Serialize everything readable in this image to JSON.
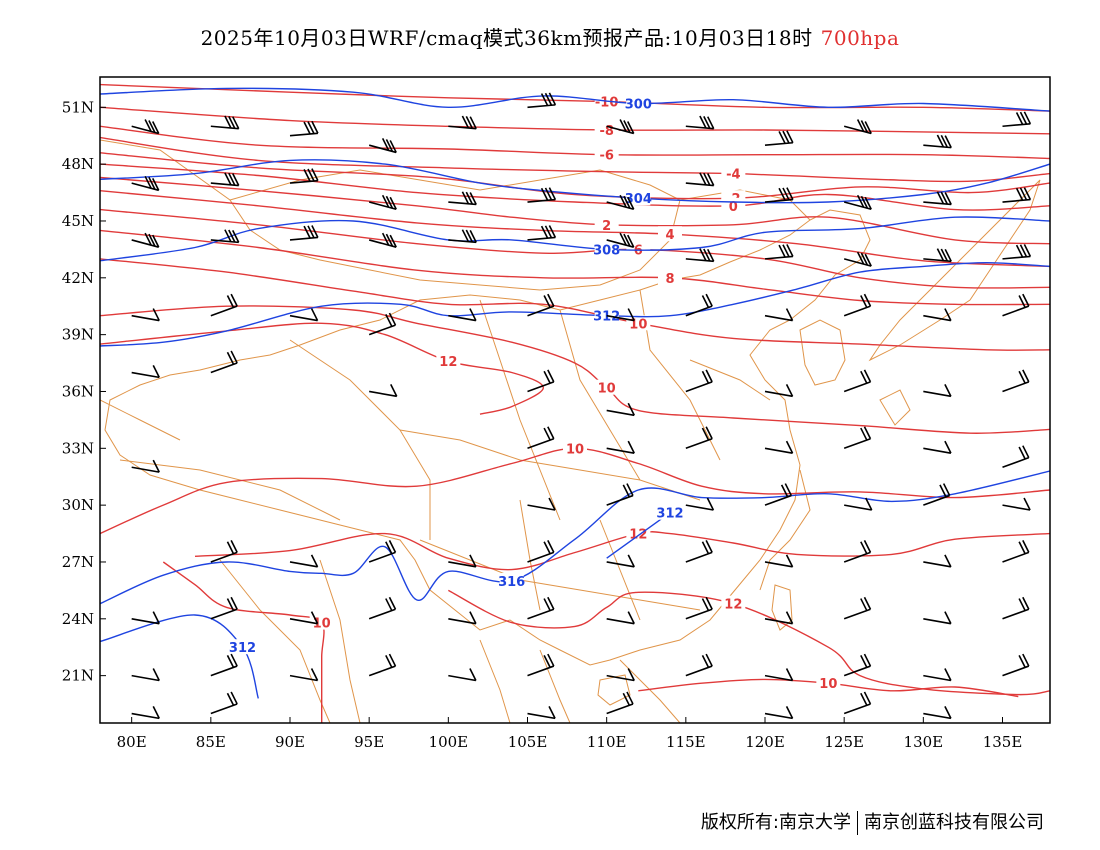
{
  "header": {
    "title": "2025年10月03日WRF/cmaq模式36km预报产品:10月03日18时",
    "level": "700hpa",
    "level_color": "#e03030"
  },
  "footer": {
    "copyright": "版权所有:南京大学",
    "company": "南京创蓝科技有限公司"
  },
  "axes": {
    "lat_labels": [
      "51N",
      "48N",
      "45N",
      "42N",
      "39N",
      "36N",
      "33N",
      "30N",
      "27N",
      "24N",
      "21N"
    ],
    "lat_values": [
      51,
      48,
      45,
      42,
      39,
      36,
      33,
      30,
      27,
      24,
      21
    ],
    "lon_labels": [
      "80E",
      "85E",
      "90E",
      "95E",
      "100E",
      "105E",
      "110E",
      "115E",
      "120E",
      "125E",
      "130E",
      "135E"
    ],
    "lon_values": [
      80,
      85,
      90,
      95,
      100,
      105,
      110,
      115,
      120,
      125,
      130,
      135
    ],
    "lon_range": [
      78,
      138
    ],
    "lat_range": [
      18.5,
      52.6
    ]
  },
  "colors": {
    "temperature": "#e03a3a",
    "height": "#1f44e0",
    "boundary": "#e0954a",
    "barb": "#000000"
  },
  "temperature_contours": [
    {
      "label": "-10",
      "pts": [
        [
          78,
          52.2
        ],
        [
          90,
          51.8
        ],
        [
          100,
          51.5
        ],
        [
          110,
          51.3
        ],
        [
          120,
          51.0
        ],
        [
          130,
          51.0
        ],
        [
          138,
          50.8
        ]
      ]
    },
    {
      "label": "-8",
      "pts": [
        [
          78,
          51.0
        ],
        [
          90,
          50.3
        ],
        [
          100,
          50.0
        ],
        [
          110,
          49.8
        ],
        [
          120,
          49.8
        ],
        [
          130,
          49.7
        ],
        [
          138,
          49.6
        ]
      ]
    },
    {
      "label": "-6",
      "pts": [
        [
          78,
          50.0
        ],
        [
          88,
          49.0
        ],
        [
          100,
          48.8
        ],
        [
          110,
          48.5
        ],
        [
          120,
          48.5
        ],
        [
          130,
          48.5
        ],
        [
          138,
          48.3
        ]
      ]
    },
    {
      "label": "-4",
      "pts": [
        [
          78,
          49.4
        ],
        [
          88,
          48.2
        ],
        [
          100,
          47.8
        ],
        [
          110,
          47.6
        ],
        [
          118,
          47.5
        ],
        [
          127,
          47.2
        ],
        [
          133,
          47.1
        ],
        [
          138,
          47.5
        ]
      ]
    },
    {
      "label": "-2",
      "pts": [
        [
          78,
          48.6
        ],
        [
          88,
          47.8
        ],
        [
          99,
          47.3
        ],
        [
          108,
          46.4
        ],
        [
          118,
          46.2
        ],
        [
          126,
          46.8
        ],
        [
          133,
          46.5
        ],
        [
          138,
          47.0
        ]
      ]
    },
    {
      "label": "0",
      "pts": [
        [
          78,
          48.0
        ],
        [
          88,
          47.4
        ],
        [
          98,
          46.5
        ],
        [
          108,
          46.0
        ],
        [
          118,
          45.8
        ],
        [
          124,
          46.4
        ],
        [
          132,
          45.6
        ],
        [
          138,
          45.8
        ]
      ]
    },
    {
      "label": "2",
      "pts": [
        [
          78,
          47.3
        ],
        [
          88,
          46.6
        ],
        [
          98,
          45.8
        ],
        [
          104,
          45.2
        ],
        [
          110,
          44.8
        ],
        [
          118,
          44.8
        ],
        [
          124,
          45.2
        ],
        [
          132,
          44.0
        ],
        [
          138,
          43.8
        ]
      ]
    },
    {
      "label": "4",
      "pts": [
        [
          78,
          46.6
        ],
        [
          88,
          45.8
        ],
        [
          98,
          44.9
        ],
        [
          106,
          44.5
        ],
        [
          114,
          44.3
        ],
        [
          122,
          43.8
        ],
        [
          130,
          42.9
        ],
        [
          138,
          42.6
        ]
      ]
    },
    {
      "label": "6",
      "pts": [
        [
          78,
          45.6
        ],
        [
          88,
          44.8
        ],
        [
          98,
          43.8
        ],
        [
          106,
          43.3
        ],
        [
          112,
          43.5
        ],
        [
          120,
          43.0
        ],
        [
          126,
          42.0
        ],
        [
          132,
          41.5
        ],
        [
          138,
          41.5
        ]
      ]
    },
    {
      "label": "8",
      "pts": [
        [
          78,
          44.5
        ],
        [
          88,
          43.6
        ],
        [
          98,
          42.4
        ],
        [
          106,
          42.0
        ],
        [
          114,
          42.0
        ],
        [
          120,
          41.4
        ],
        [
          126,
          40.8
        ],
        [
          132,
          40.6
        ],
        [
          138,
          40.6
        ]
      ]
    },
    {
      "label": "10",
      "pts": [
        [
          78,
          43.0
        ],
        [
          86,
          42.3
        ],
        [
          94,
          41.3
        ],
        [
          100,
          40.6
        ],
        [
          106,
          40.6
        ],
        [
          112,
          39.6
        ],
        [
          118,
          38.8
        ],
        [
          126,
          38.5
        ],
        [
          134,
          38.2
        ],
        [
          138,
          38.2
        ]
      ]
    },
    {
      "label": "10",
      "pts": [
        [
          78,
          40.0
        ],
        [
          86,
          40.5
        ],
        [
          94,
          40.3
        ],
        [
          98,
          39.6
        ],
        [
          104,
          38.6
        ],
        [
          108,
          37.5
        ],
        [
          110,
          36.2
        ],
        [
          112,
          35.0
        ],
        [
          118,
          34.6
        ],
        [
          126,
          34.2
        ],
        [
          133,
          33.8
        ],
        [
          138,
          34.0
        ]
      ]
    },
    {
      "label": "12",
      "pts": [
        [
          78,
          38.5
        ],
        [
          86,
          39.2
        ],
        [
          92,
          39.6
        ],
        [
          96,
          39.0
        ],
        [
          100,
          37.6
        ],
        [
          104,
          37.0
        ],
        [
          106,
          36.2
        ],
        [
          104,
          35.2
        ],
        [
          102,
          34.8
        ]
      ]
    },
    {
      "label": "10",
      "pts": [
        [
          78,
          28.5
        ],
        [
          82,
          30.0
        ],
        [
          86,
          31.2
        ],
        [
          92,
          31.4
        ],
        [
          98,
          31.0
        ],
        [
          104,
          32.2
        ],
        [
          108,
          33.0
        ],
        [
          112,
          32.2
        ],
        [
          116,
          31.0
        ],
        [
          120,
          30.6
        ],
        [
          126,
          30.7
        ],
        [
          132,
          30.4
        ],
        [
          138,
          30.8
        ]
      ]
    },
    {
      "label": "12",
      "pts": [
        [
          84,
          27.3
        ],
        [
          90,
          27.6
        ],
        [
          96,
          28.5
        ],
        [
          100,
          27.2
        ],
        [
          104,
          26.6
        ],
        [
          108,
          27.5
        ],
        [
          112,
          28.5
        ],
        [
          114,
          28.5
        ],
        [
          118,
          28.0
        ],
        [
          122,
          27.4
        ],
        [
          128,
          27.4
        ],
        [
          132,
          28.2
        ],
        [
          138,
          28.5
        ]
      ]
    },
    {
      "label": "10",
      "pts": [
        [
          82,
          27.0
        ],
        [
          84,
          25.8
        ],
        [
          86,
          24.6
        ],
        [
          90,
          24.2
        ],
        [
          92,
          23.8
        ],
        [
          92,
          22.0
        ],
        [
          92,
          20.0
        ],
        [
          92,
          18.5
        ]
      ]
    },
    {
      "label": "12",
      "pts": [
        [
          100,
          25.5
        ],
        [
          104,
          23.8
        ],
        [
          108,
          23.6
        ],
        [
          110,
          24.6
        ],
        [
          112,
          25.4
        ],
        [
          118,
          24.8
        ],
        [
          124,
          22.5
        ],
        [
          126,
          21.0
        ],
        [
          130,
          20.3
        ],
        [
          136,
          20.0
        ],
        [
          138,
          20.2
        ]
      ]
    },
    {
      "label": "10",
      "pts": [
        [
          112,
          20.2
        ],
        [
          116,
          20.6
        ],
        [
          120,
          20.8
        ],
        [
          124,
          20.6
        ],
        [
          128,
          20.2
        ],
        [
          132,
          20.4
        ],
        [
          136,
          19.9
        ]
      ]
    }
  ],
  "height_contours": [
    {
      "label": "300",
      "pts": [
        [
          78,
          51.7
        ],
        [
          86,
          52.0
        ],
        [
          94,
          51.8
        ],
        [
          100,
          51.0
        ],
        [
          106,
          51.6
        ],
        [
          112,
          51.2
        ],
        [
          118,
          51.4
        ],
        [
          124,
          51.0
        ],
        [
          130,
          51.2
        ],
        [
          138,
          50.8
        ]
      ]
    },
    {
      "label": "304",
      "pts": [
        [
          78,
          47.2
        ],
        [
          84,
          47.5
        ],
        [
          90,
          48.2
        ],
        [
          96,
          48.0
        ],
        [
          102,
          47.0
        ],
        [
          106,
          46.6
        ],
        [
          112,
          46.2
        ],
        [
          118,
          46.0
        ],
        [
          124,
          46.0
        ],
        [
          130,
          46.4
        ],
        [
          134,
          47.0
        ],
        [
          138,
          48.0
        ]
      ]
    },
    {
      "label": "308",
      "pts": [
        [
          78,
          42.9
        ],
        [
          84,
          43.6
        ],
        [
          88,
          44.6
        ],
        [
          94,
          45.0
        ],
        [
          100,
          44.0
        ],
        [
          104,
          44.0
        ],
        [
          110,
          43.5
        ],
        [
          116,
          43.6
        ],
        [
          120,
          44.4
        ],
        [
          126,
          44.6
        ],
        [
          132,
          45.2
        ],
        [
          138,
          45.0
        ]
      ]
    },
    {
      "label": "312",
      "pts": [
        [
          78,
          38.4
        ],
        [
          82,
          38.6
        ],
        [
          86,
          39.2
        ],
        [
          92,
          40.5
        ],
        [
          97,
          40.6
        ],
        [
          100,
          40.0
        ],
        [
          104,
          40.2
        ],
        [
          110,
          40.0
        ],
        [
          114,
          40.0
        ],
        [
          118,
          40.6
        ],
        [
          122,
          41.4
        ],
        [
          126,
          42.3
        ],
        [
          130,
          42.6
        ],
        [
          134,
          42.8
        ],
        [
          138,
          42.6
        ]
      ]
    },
    {
      "label": "316",
      "pts": [
        [
          78,
          24.8
        ],
        [
          82,
          26.3
        ],
        [
          86,
          27.0
        ],
        [
          90,
          26.5
        ],
        [
          92,
          26.4
        ],
        [
          94,
          26.4
        ],
        [
          96,
          27.8
        ],
        [
          98,
          25.0
        ],
        [
          100,
          26.5
        ],
        [
          104,
          26.0
        ],
        [
          108,
          28.2
        ],
        [
          112,
          30.8
        ],
        [
          116,
          30.4
        ],
        [
          120,
          30.4
        ],
        [
          124,
          30.6
        ],
        [
          128,
          30.2
        ],
        [
          132,
          30.6
        ],
        [
          138,
          31.8
        ]
      ]
    },
    {
      "label": "312",
      "pts": [
        [
          78,
          22.8
        ],
        [
          84,
          24.2
        ],
        [
          87,
          22.5
        ],
        [
          88,
          19.8
        ]
      ]
    },
    {
      "label": "312",
      "pts": [
        [
          110,
          27.2
        ],
        [
          114,
          29.6
        ]
      ]
    }
  ],
  "wind_barbs": [
    [
      80,
      50
    ],
    [
      85,
      50
    ],
    [
      90,
      49.5
    ],
    [
      95,
      49
    ],
    [
      100,
      50
    ],
    [
      105,
      51
    ],
    [
      110,
      50
    ],
    [
      115,
      50
    ],
    [
      120,
      49
    ],
    [
      125,
      50
    ],
    [
      130,
      49
    ],
    [
      135,
      50
    ],
    [
      80,
      47
    ],
    [
      85,
      47
    ],
    [
      90,
      47
    ],
    [
      95,
      46
    ],
    [
      100,
      46
    ],
    [
      105,
      46
    ],
    [
      110,
      46
    ],
    [
      115,
      47
    ],
    [
      120,
      46
    ],
    [
      125,
      46
    ],
    [
      130,
      46
    ],
    [
      135,
      46
    ],
    [
      80,
      44
    ],
    [
      85,
      44
    ],
    [
      90,
      44
    ],
    [
      95,
      44
    ],
    [
      100,
      44
    ],
    [
      105,
      44
    ],
    [
      110,
      44
    ],
    [
      115,
      43
    ],
    [
      120,
      43
    ],
    [
      125,
      43
    ],
    [
      130,
      43
    ],
    [
      135,
      43
    ],
    [
      80,
      40
    ],
    [
      85,
      40
    ],
    [
      90,
      40
    ],
    [
      95,
      39
    ],
    [
      100,
      40
    ],
    [
      105,
      40
    ],
    [
      110,
      40
    ],
    [
      115,
      40
    ],
    [
      120,
      40
    ],
    [
      125,
      40
    ],
    [
      130,
      40
    ],
    [
      135,
      40
    ],
    [
      80,
      37
    ],
    [
      85,
      37
    ],
    [
      95,
      36
    ],
    [
      105,
      36
    ],
    [
      110,
      35
    ],
    [
      115,
      36
    ],
    [
      120,
      36
    ],
    [
      125,
      36
    ],
    [
      130,
      36
    ],
    [
      135,
      36
    ],
    [
      80,
      32
    ],
    [
      105,
      33
    ],
    [
      110,
      33
    ],
    [
      115,
      33
    ],
    [
      120,
      33
    ],
    [
      125,
      33
    ],
    [
      130,
      33
    ],
    [
      135,
      32
    ],
    [
      105,
      30
    ],
    [
      110,
      30
    ],
    [
      115,
      30
    ],
    [
      120,
      30
    ],
    [
      125,
      30
    ],
    [
      130,
      30
    ],
    [
      135,
      30
    ],
    [
      85,
      27
    ],
    [
      90,
      27
    ],
    [
      95,
      27
    ],
    [
      100,
      27
    ],
    [
      105,
      27
    ],
    [
      110,
      27
    ],
    [
      115,
      27
    ],
    [
      120,
      27
    ],
    [
      125,
      27
    ],
    [
      130,
      27
    ],
    [
      135,
      27
    ],
    [
      80,
      24
    ],
    [
      85,
      24
    ],
    [
      90,
      24
    ],
    [
      95,
      24
    ],
    [
      100,
      24
    ],
    [
      105,
      24
    ],
    [
      110,
      24
    ],
    [
      115,
      24
    ],
    [
      120,
      24
    ],
    [
      125,
      24
    ],
    [
      130,
      24
    ],
    [
      135,
      24
    ],
    [
      80,
      21
    ],
    [
      85,
      21
    ],
    [
      90,
      21
    ],
    [
      95,
      21
    ],
    [
      100,
      21
    ],
    [
      105,
      21
    ],
    [
      110,
      21
    ],
    [
      115,
      21
    ],
    [
      120,
      21
    ],
    [
      125,
      21
    ],
    [
      130,
      21
    ],
    [
      135,
      21
    ],
    [
      80,
      19
    ],
    [
      85,
      19
    ],
    [
      105,
      19
    ],
    [
      110,
      19
    ],
    [
      120,
      19
    ],
    [
      125,
      19
    ],
    [
      130,
      19
    ]
  ]
}
